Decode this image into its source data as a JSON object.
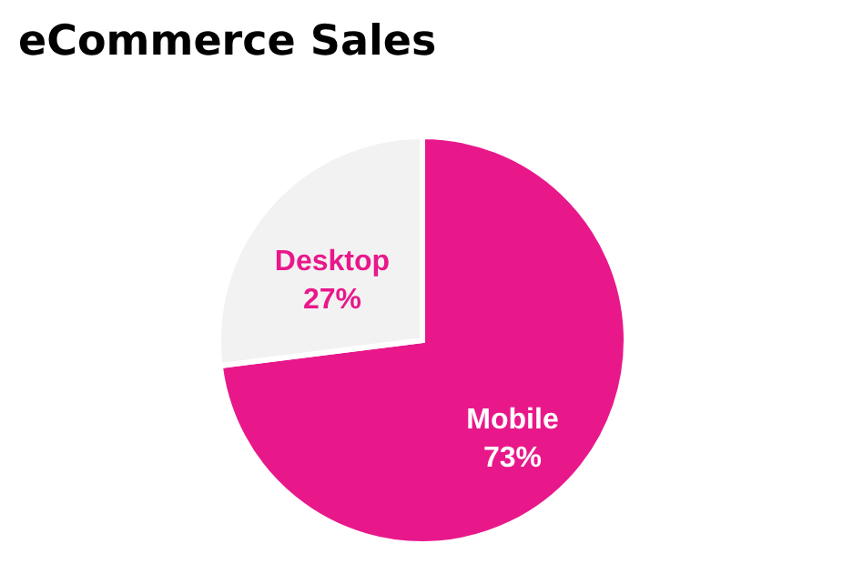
{
  "chart_data": {
    "type": "pie",
    "title": "eCommerce Sales",
    "categories": [
      "Mobile",
      "Desktop"
    ],
    "values": [
      73,
      27
    ],
    "colors": [
      "#e8188b",
      "#f2f2f2"
    ],
    "value_labels": [
      "73%",
      "27%"
    ]
  }
}
